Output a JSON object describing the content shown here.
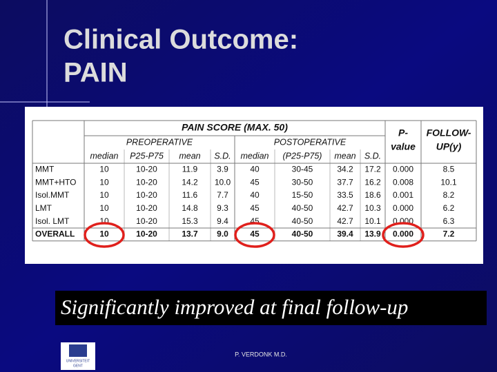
{
  "header": {
    "title_line1": "Clinical Outcome:",
    "title_line2": "PAIN"
  },
  "table": {
    "group_header": "PAIN SCORE (MAX. 50)",
    "p_header": [
      "P-",
      "value"
    ],
    "followup_header": [
      "FOLLOW-",
      "UP(y)"
    ],
    "subgroups": [
      "PREOPERATIVE",
      "POSTOPERATIVE"
    ],
    "columns": [
      "median",
      "P25-P75",
      "mean",
      "S.D.",
      "median",
      "(P25-P75)",
      "mean",
      "S.D."
    ],
    "rows": [
      [
        "MMT",
        "10",
        "10-20",
        "11.9",
        "3.9",
        "40",
        "30-45",
        "34.2",
        "17.2",
        "0.000",
        "8.5"
      ],
      [
        "MMT+HTO",
        "10",
        "10-20",
        "14.2",
        "10.0",
        "45",
        "30-50",
        "37.7",
        "16.2",
        "0.008",
        "10.1"
      ],
      [
        "Isol.MMT",
        "10",
        "10-20",
        "11.6",
        "7.7",
        "40",
        "15-50",
        "33.5",
        "18.6",
        "0.001",
        "8.2"
      ],
      [
        "LMT",
        "10",
        "10-20",
        "14.8",
        "9.3",
        "45",
        "40-50",
        "42.7",
        "10.3",
        "0.000",
        "6.2"
      ],
      [
        "Isol. LMT",
        "10",
        "10-20",
        "15.3",
        "9.4",
        "45",
        "40-50",
        "42.7",
        "10.1",
        "0.000",
        "6.3"
      ],
      [
        "OVERALL",
        "10",
        "10-20",
        "13.7",
        "9.0",
        "45",
        "40-50",
        "39.4",
        "13.9",
        "0.000",
        "7.2"
      ]
    ]
  },
  "banner": "Significantly improved at final follow-up",
  "footer": "P. VERDONK M.D.",
  "logo": [
    "UNIVERSITEIT",
    "GENT"
  ]
}
